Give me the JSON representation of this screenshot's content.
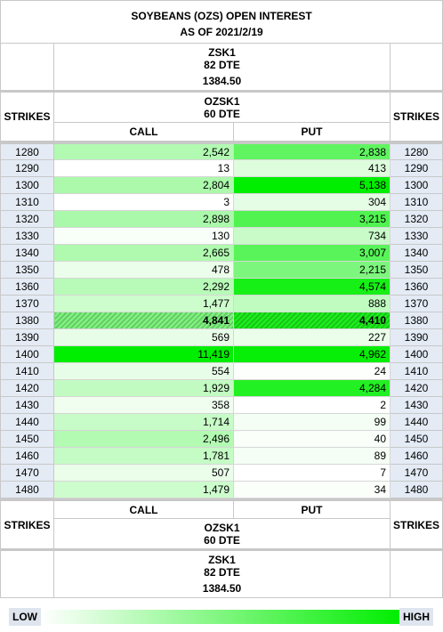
{
  "title": "SOYBEANS (OZS) OPEN INTEREST",
  "as_of": "AS OF 2021/2/19",
  "underlying": {
    "symbol": "ZSK1",
    "dte": "82 DTE",
    "price": "1384.50"
  },
  "option": {
    "symbol": "OZSK1",
    "dte": "60 DTE"
  },
  "labels": {
    "strikes": "STRIKES",
    "call": "CALL",
    "put": "PUT",
    "low": "LOW",
    "high": "HIGH"
  },
  "colors": {
    "low": "#ffffff",
    "high": "#00ee00",
    "strike_bg": "#e4ebf5"
  },
  "at_the_money_strike": "1380",
  "chart_data": {
    "type": "table",
    "title": "SOYBEANS (OZS) OPEN INTEREST",
    "columns": [
      "STRIKES",
      "CALL",
      "PUT",
      "STRIKES"
    ],
    "rows": [
      {
        "strike": "1280",
        "call": "2,542",
        "put": "2,838"
      },
      {
        "strike": "1290",
        "call": "13",
        "put": "413"
      },
      {
        "strike": "1300",
        "call": "2,804",
        "put": "5,138"
      },
      {
        "strike": "1310",
        "call": "3",
        "put": "304"
      },
      {
        "strike": "1320",
        "call": "2,898",
        "put": "3,215"
      },
      {
        "strike": "1330",
        "call": "130",
        "put": "734"
      },
      {
        "strike": "1340",
        "call": "2,665",
        "put": "3,007"
      },
      {
        "strike": "1350",
        "call": "478",
        "put": "2,215"
      },
      {
        "strike": "1360",
        "call": "2,292",
        "put": "4,574"
      },
      {
        "strike": "1370",
        "call": "1,477",
        "put": "888"
      },
      {
        "strike": "1380",
        "call": "4,841",
        "put": "4,410"
      },
      {
        "strike": "1390",
        "call": "569",
        "put": "227"
      },
      {
        "strike": "1400",
        "call": "11,419",
        "put": "4,962"
      },
      {
        "strike": "1410",
        "call": "554",
        "put": "24"
      },
      {
        "strike": "1420",
        "call": "1,929",
        "put": "4,284"
      },
      {
        "strike": "1430",
        "call": "358",
        "put": "2"
      },
      {
        "strike": "1440",
        "call": "1,714",
        "put": "99"
      },
      {
        "strike": "1450",
        "call": "2,496",
        "put": "40"
      },
      {
        "strike": "1460",
        "call": "1,781",
        "put": "89"
      },
      {
        "strike": "1470",
        "call": "507",
        "put": "7"
      },
      {
        "strike": "1480",
        "call": "1,479",
        "put": "34"
      }
    ],
    "call_max": 11419,
    "put_max": 5138
  }
}
